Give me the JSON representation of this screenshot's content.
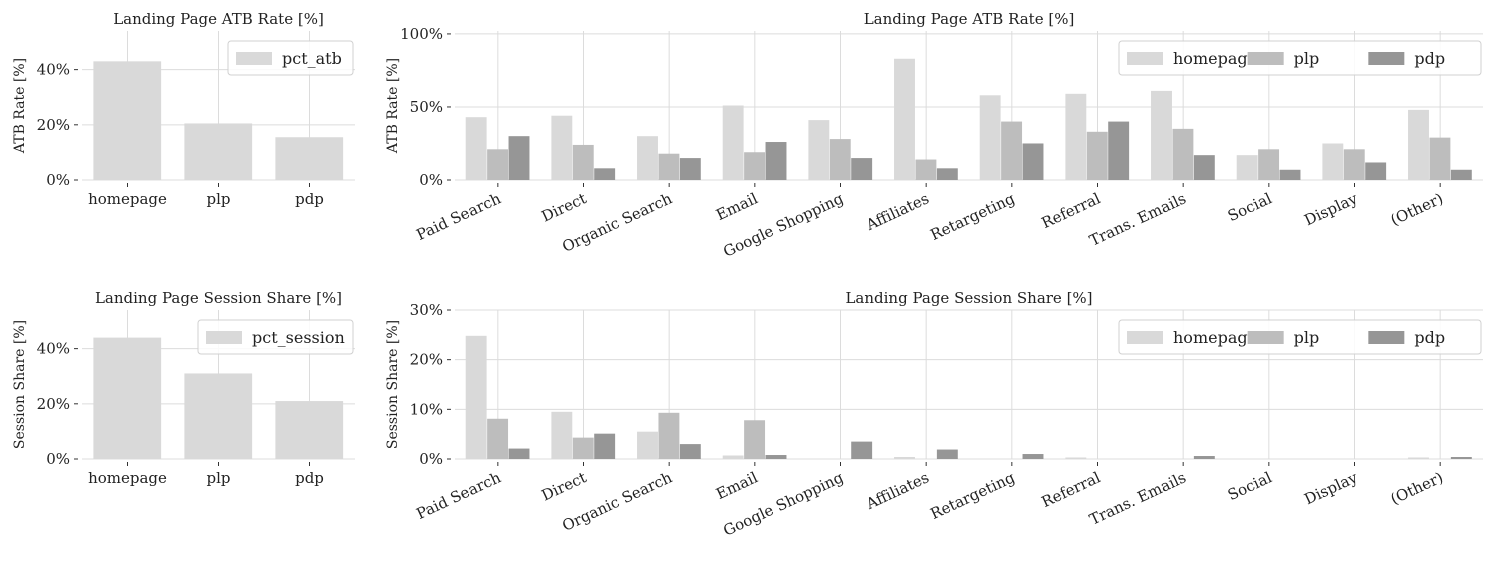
{
  "chart_data": [
    {
      "type": "bar",
      "title": "Landing Page ATB Rate [%]",
      "ylabel": "ATB Rate [%]",
      "xlabel": "",
      "categories": [
        "homepage",
        "plp",
        "pdp"
      ],
      "series": [
        {
          "name": "pct_atb",
          "values": [
            43,
            20.5,
            15.5
          ]
        }
      ],
      "ylim": [
        0,
        54
      ],
      "yticks": [
        0,
        20,
        40
      ],
      "ytick_labels": [
        "0%",
        "20%",
        "40%"
      ],
      "grid": true,
      "legend": "top-right",
      "colors": [
        "#d9d9d9"
      ]
    },
    {
      "type": "bar",
      "title": "Landing Page ATB Rate [%]",
      "ylabel": "ATB Rate [%]",
      "xlabel": "",
      "categories": [
        "Paid Search",
        "Direct",
        "Organic Search",
        "Email",
        "Google Shopping",
        "Affiliates",
        "Retargeting",
        "Referral",
        "Trans. Emails",
        "Social",
        "Display",
        "(Other)"
      ],
      "series": [
        {
          "name": "homepage",
          "values": [
            43,
            44,
            30,
            51,
            41,
            83,
            58,
            59,
            61,
            17,
            25,
            48
          ]
        },
        {
          "name": "plp",
          "values": [
            21,
            24,
            18,
            19,
            28,
            14,
            40,
            33,
            35,
            21,
            21,
            29
          ]
        },
        {
          "name": "pdp",
          "values": [
            30,
            8,
            15,
            26,
            15,
            8,
            25,
            40,
            17,
            7,
            12,
            7
          ]
        }
      ],
      "ylim": [
        0,
        102
      ],
      "yticks": [
        0,
        50,
        100
      ],
      "ytick_labels": [
        "0%",
        "50%",
        "100%"
      ],
      "grid": true,
      "legend": "top-right",
      "colors": [
        "#d9d9d9",
        "#bdbdbd",
        "#969696"
      ]
    },
    {
      "type": "bar",
      "title": "Landing Page Session Share [%]",
      "ylabel": "Session Share [%]",
      "xlabel": "",
      "categories": [
        "homepage",
        "plp",
        "pdp"
      ],
      "series": [
        {
          "name": "pct_session",
          "values": [
            44,
            31,
            21
          ]
        }
      ],
      "ylim": [
        0,
        54
      ],
      "yticks": [
        0,
        20,
        40
      ],
      "ytick_labels": [
        "0%",
        "20%",
        "40%"
      ],
      "grid": true,
      "legend": "top-right",
      "colors": [
        "#d9d9d9"
      ]
    },
    {
      "type": "bar",
      "title": "Landing Page Session Share [%]",
      "ylabel": "Session Share [%]",
      "xlabel": "",
      "categories": [
        "Paid Search",
        "Direct",
        "Organic Search",
        "Email",
        "Google Shopping",
        "Affiliates",
        "Retargeting",
        "Referral",
        "Trans. Emails",
        "Social",
        "Display",
        "(Other)"
      ],
      "series": [
        {
          "name": "homepage",
          "values": [
            24.8,
            9.5,
            5.5,
            0.7,
            0,
            0.4,
            0,
            0.3,
            0,
            0,
            0,
            0.3
          ]
        },
        {
          "name": "plp",
          "values": [
            8.1,
            4.3,
            9.3,
            7.8,
            0,
            0,
            0,
            0,
            0,
            0,
            0,
            0
          ]
        },
        {
          "name": "pdp",
          "values": [
            2.1,
            5.1,
            3.0,
            0.8,
            3.5,
            1.9,
            1.0,
            0,
            0.6,
            0,
            0,
            0.4
          ]
        }
      ],
      "ylim": [
        0,
        30
      ],
      "yticks": [
        0,
        10,
        20,
        30
      ],
      "ytick_labels": [
        "0%",
        "10%",
        "20%",
        "30%"
      ],
      "grid": true,
      "legend": "top-right",
      "colors": [
        "#d9d9d9",
        "#bdbdbd",
        "#969696"
      ]
    }
  ]
}
